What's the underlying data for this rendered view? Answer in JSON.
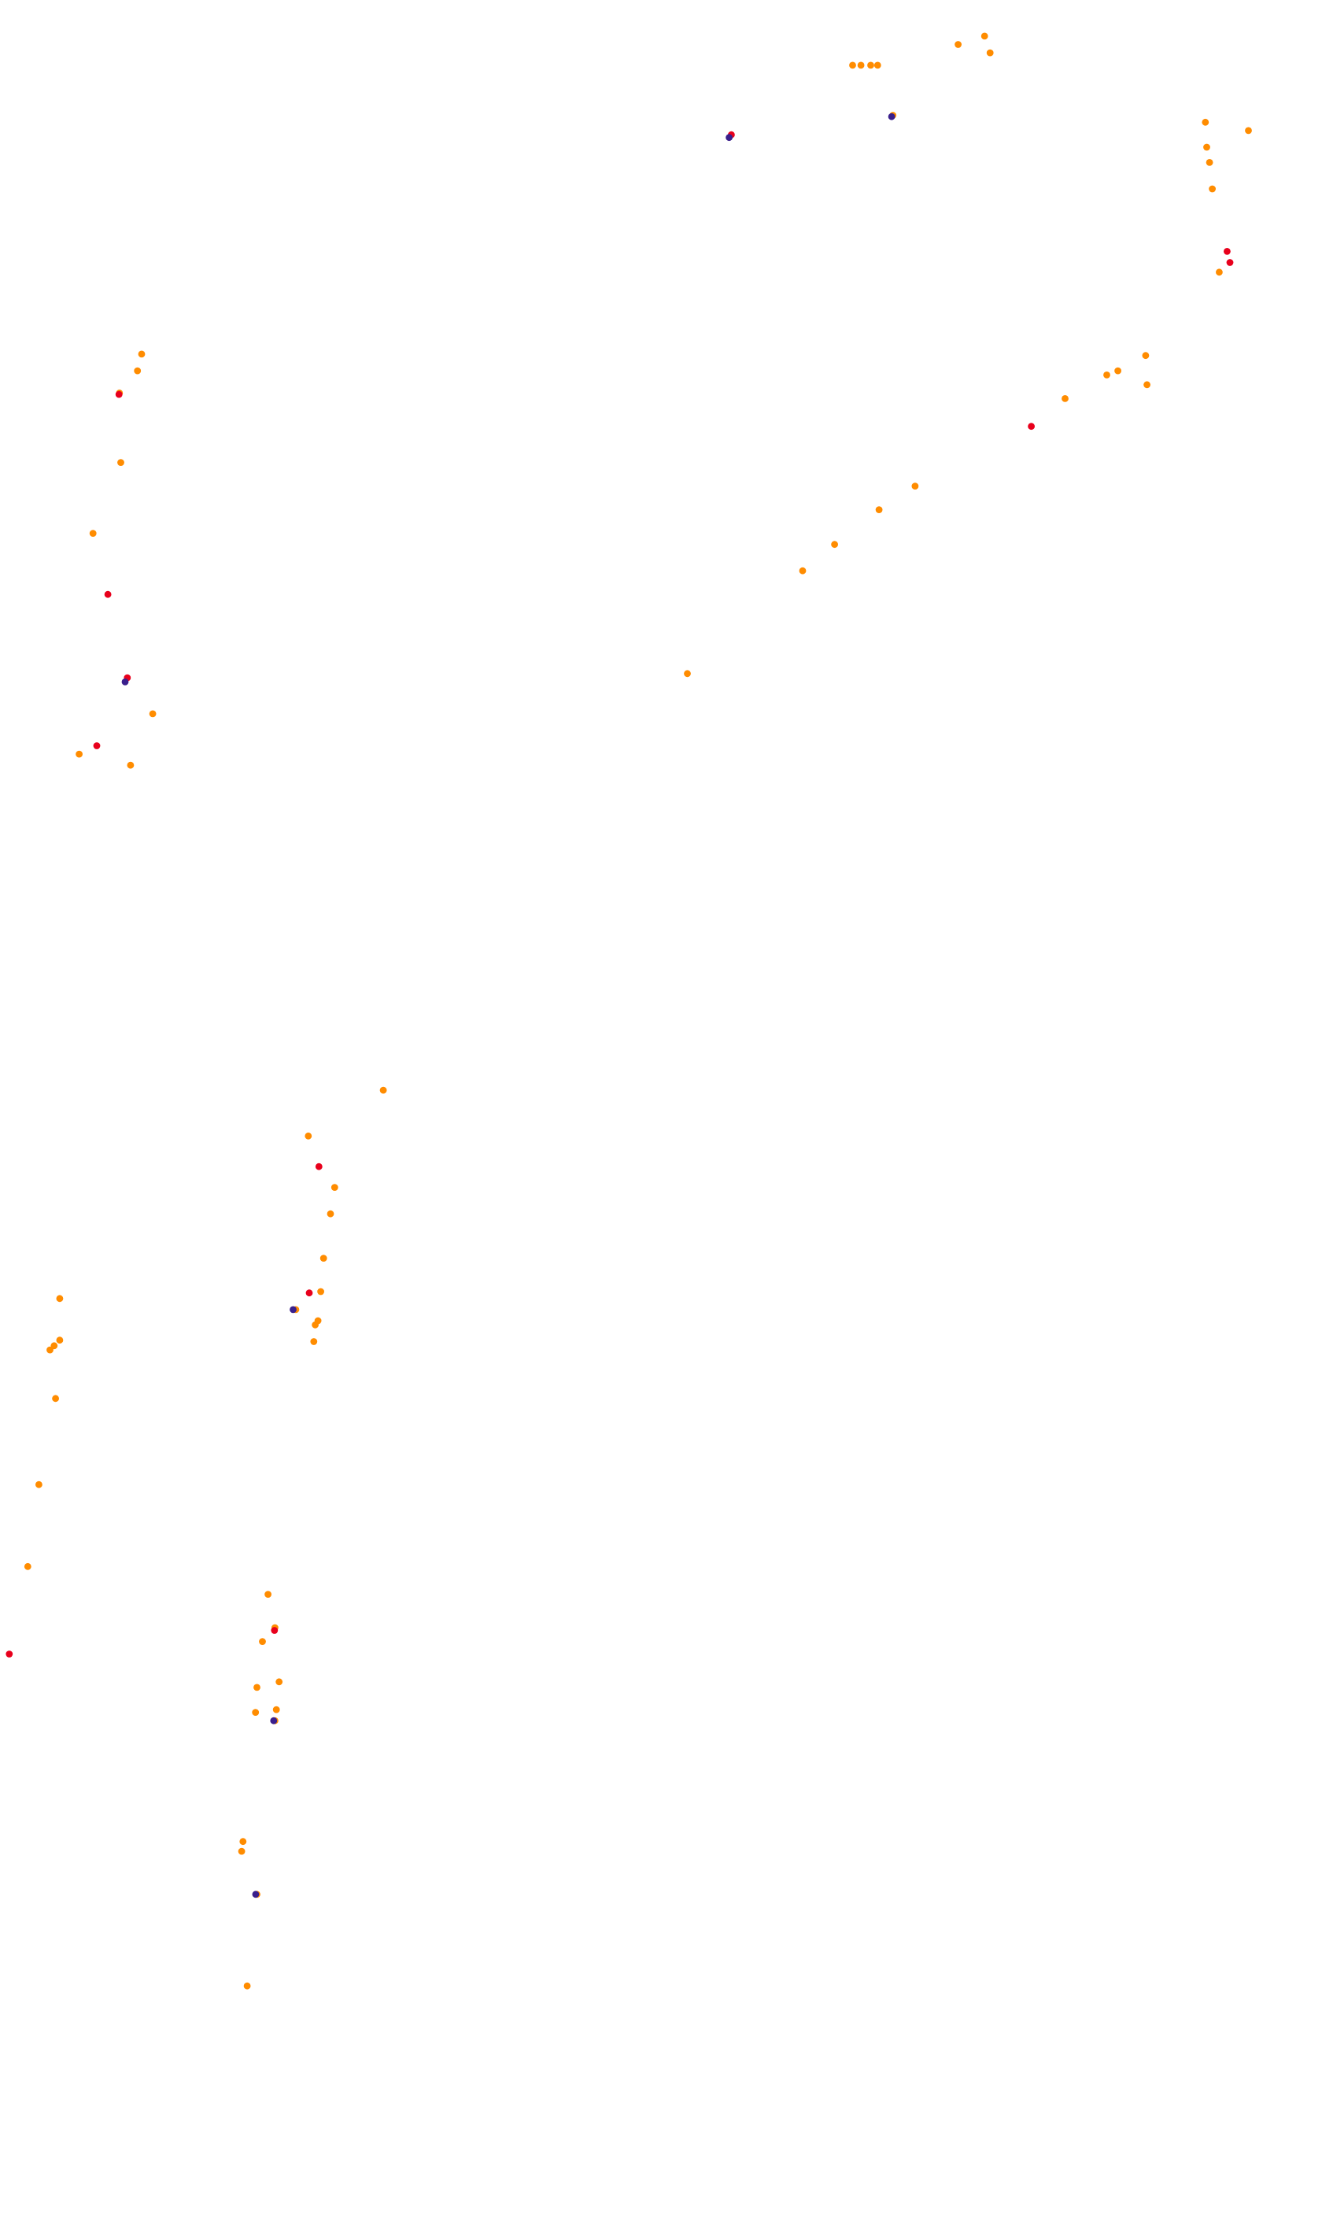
{
  "chart_data": {
    "type": "scatter",
    "title": "",
    "xlabel": "",
    "ylabel": "",
    "axes_visible": false,
    "grid": false,
    "legend": "none",
    "xlim": [
      0,
      952
    ],
    "ylim": [
      0,
      1605
    ],
    "y_inverted": true,
    "colors": {
      "background": "#ffffff",
      "orange": "#ff8c00",
      "red": "#e8001c",
      "navy": "#3a1f8c"
    },
    "series": [
      {
        "color_key": "orange",
        "points": [
          [
            614,
            47
          ],
          [
            620,
            47
          ],
          [
            627,
            47
          ],
          [
            632,
            47
          ],
          [
            643,
            83
          ],
          [
            690,
            32
          ],
          [
            709,
            26
          ],
          [
            713,
            38
          ],
          [
            868,
            88
          ],
          [
            899,
            94
          ],
          [
            869,
            106
          ],
          [
            871,
            117
          ],
          [
            873,
            136
          ],
          [
            878,
            196
          ],
          [
            825,
            256
          ],
          [
            826,
            277
          ],
          [
            805,
            267
          ],
          [
            797,
            270
          ],
          [
            767,
            287
          ],
          [
            659,
            350
          ],
          [
            633,
            367
          ],
          [
            601,
            392
          ],
          [
            578,
            411
          ],
          [
            495,
            485
          ],
          [
            102,
            255
          ],
          [
            99,
            267
          ],
          [
            86,
            283
          ],
          [
            87,
            333
          ],
          [
            67,
            384
          ],
          [
            110,
            514
          ],
          [
            57,
            543
          ],
          [
            94,
            551
          ],
          [
            276,
            785
          ],
          [
            222,
            818
          ],
          [
            241,
            855
          ],
          [
            238,
            874
          ],
          [
            233,
            906
          ],
          [
            231,
            930
          ],
          [
            213,
            943
          ],
          [
            229,
            951
          ],
          [
            227,
            954
          ],
          [
            226,
            966
          ],
          [
            43,
            935
          ],
          [
            43,
            965
          ],
          [
            39,
            969
          ],
          [
            36,
            972
          ],
          [
            40,
            1007
          ],
          [
            28,
            1069
          ],
          [
            20,
            1128
          ],
          [
            193,
            1148
          ],
          [
            198,
            1172
          ],
          [
            189,
            1182
          ],
          [
            201,
            1211
          ],
          [
            185,
            1215
          ],
          [
            199,
            1231
          ],
          [
            184,
            1233
          ],
          [
            198,
            1239
          ],
          [
            175,
            1326
          ],
          [
            174,
            1333
          ],
          [
            185,
            1364
          ],
          [
            178,
            1430
          ]
        ]
      },
      {
        "color_key": "red",
        "points": [
          [
            526,
            97
          ],
          [
            883,
            181
          ],
          [
            885,
            189
          ],
          [
            742,
            307
          ],
          [
            85,
            284
          ],
          [
            77,
            428
          ],
          [
            91,
            488
          ],
          [
            69,
            537
          ],
          [
            229,
            840
          ],
          [
            222,
            931
          ],
          [
            197,
            1174
          ],
          [
            6,
            1191
          ]
        ]
      },
      {
        "color_key": "navy",
        "points": [
          [
            526,
            99
          ],
          [
            91,
            491
          ],
          [
            212,
            943
          ],
          [
            198,
            1239
          ],
          [
            185,
            1364
          ],
          [
            643,
            84
          ]
        ]
      }
    ]
  }
}
